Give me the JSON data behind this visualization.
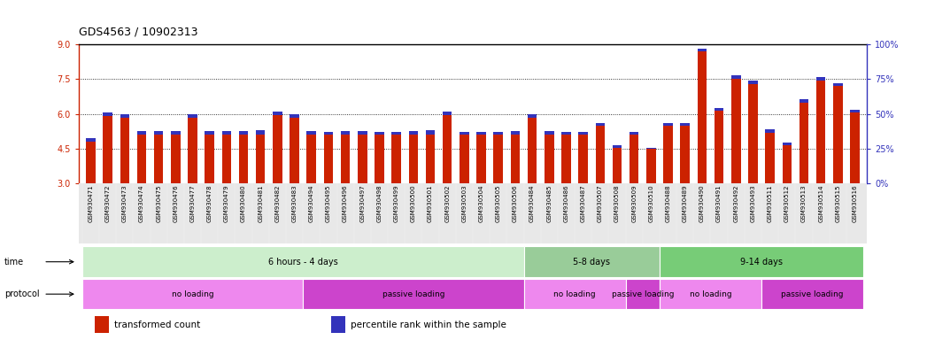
{
  "title": "GDS4563 / 10902313",
  "samples": [
    "GSM930471",
    "GSM930472",
    "GSM930473",
    "GSM930474",
    "GSM930475",
    "GSM930476",
    "GSM930477",
    "GSM930478",
    "GSM930479",
    "GSM930480",
    "GSM930481",
    "GSM930482",
    "GSM930483",
    "GSM930494",
    "GSM930495",
    "GSM930496",
    "GSM930497",
    "GSM930498",
    "GSM930499",
    "GSM930500",
    "GSM930501",
    "GSM930502",
    "GSM930503",
    "GSM930504",
    "GSM930505",
    "GSM930506",
    "GSM930484",
    "GSM930485",
    "GSM930486",
    "GSM930487",
    "GSM930507",
    "GSM930508",
    "GSM930509",
    "GSM930510",
    "GSM930488",
    "GSM930489",
    "GSM930490",
    "GSM930491",
    "GSM930492",
    "GSM930493",
    "GSM930511",
    "GSM930512",
    "GSM930513",
    "GSM930514",
    "GSM930515",
    "GSM930516"
  ],
  "red_values": [
    4.82,
    5.9,
    5.85,
    5.12,
    5.12,
    5.12,
    5.85,
    5.12,
    5.12,
    5.12,
    5.12,
    5.95,
    5.85,
    5.12,
    5.12,
    5.12,
    5.12,
    5.12,
    5.12,
    5.12,
    5.12,
    5.95,
    5.12,
    5.12,
    5.12,
    5.12,
    5.85,
    5.12,
    5.12,
    5.12,
    5.5,
    4.55,
    5.12,
    4.5,
    5.5,
    5.5,
    8.7,
    6.15,
    7.5,
    7.3,
    5.2,
    4.65,
    6.5,
    7.45,
    7.2,
    6.05
  ],
  "blue_top": [
    4.95,
    6.05,
    5.97,
    5.25,
    5.25,
    5.25,
    5.97,
    5.25,
    5.25,
    5.25,
    5.3,
    6.1,
    5.97,
    5.25,
    5.22,
    5.25,
    5.25,
    5.22,
    5.22,
    5.25,
    5.3,
    6.1,
    5.22,
    5.22,
    5.22,
    5.25,
    5.97,
    5.25,
    5.22,
    5.22,
    5.62,
    4.65,
    5.22,
    4.55,
    5.62,
    5.62,
    8.82,
    6.27,
    7.65,
    7.45,
    5.32,
    4.78,
    6.62,
    7.57,
    7.32,
    6.17
  ],
  "ylim_left": [
    3,
    9
  ],
  "ylim_right": [
    0,
    100
  ],
  "yticks_left": [
    3,
    4.5,
    6,
    7.5,
    9
  ],
  "yticks_right": [
    0,
    25,
    50,
    75,
    100
  ],
  "bar_color": "#cc2200",
  "blue_color": "#3333bb",
  "bg_color": "#ffffff",
  "time_groups": [
    {
      "label": "6 hours - 4 days",
      "start": 0,
      "end": 25,
      "color": "#cceecc"
    },
    {
      "label": "5-8 days",
      "start": 26,
      "end": 33,
      "color": "#99cc99"
    },
    {
      "label": "9-14 days",
      "start": 34,
      "end": 45,
      "color": "#77cc77"
    }
  ],
  "protocol_groups": [
    {
      "label": "no loading",
      "start": 0,
      "end": 12,
      "color": "#ee88ee"
    },
    {
      "label": "passive loading",
      "start": 13,
      "end": 25,
      "color": "#cc44cc"
    },
    {
      "label": "no loading",
      "start": 26,
      "end": 31,
      "color": "#ee88ee"
    },
    {
      "label": "passive loading",
      "start": 32,
      "end": 33,
      "color": "#cc44cc"
    },
    {
      "label": "no loading",
      "start": 34,
      "end": 39,
      "color": "#ee88ee"
    },
    {
      "label": "passive loading",
      "start": 40,
      "end": 45,
      "color": "#cc44cc"
    }
  ],
  "legend_items": [
    {
      "label": "transformed count",
      "color": "#cc2200"
    },
    {
      "label": "percentile rank within the sample",
      "color": "#3333bb"
    }
  ]
}
